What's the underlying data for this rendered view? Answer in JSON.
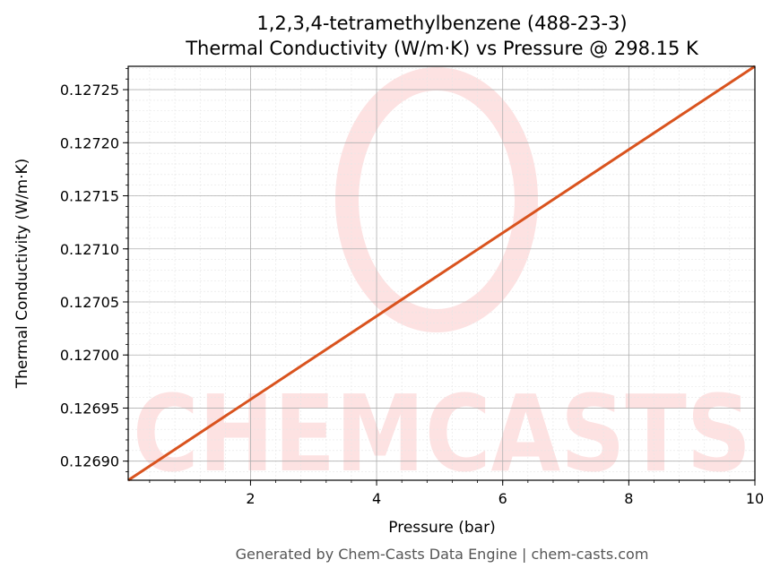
{
  "chart_data": {
    "type": "line",
    "title": "1,2,3,4-tetramethylbenzene (488-23-3)",
    "subtitle": "Thermal Conductivity (W/m·K) vs Pressure @ 298.15 K",
    "xlabel": "Pressure (bar)",
    "ylabel": "Thermal Conductivity (W/m·K)",
    "xlim": [
      0.06,
      10
    ],
    "ylim": [
      0.126882,
      0.127272
    ],
    "xticks": [
      2,
      4,
      6,
      8,
      10
    ],
    "yticks": [
      0.1269,
      0.12695,
      0.127,
      0.12705,
      0.1271,
      0.12715,
      0.1272,
      0.12725
    ],
    "ytick_labels": [
      "0.12690",
      "0.12695",
      "0.12700",
      "0.12705",
      "0.12710",
      "0.12715",
      "0.12720",
      "0.12725"
    ],
    "grid": true,
    "series": [
      {
        "x": [
          0.06,
          10
        ],
        "y": [
          0.126882,
          0.127272
        ],
        "color": "#d9531e"
      }
    ]
  },
  "watermark": {
    "text": "CHEMCASTS",
    "color": "#fde2e2"
  },
  "footer": "Generated by Chem-Casts Data Engine | chem-casts.com"
}
